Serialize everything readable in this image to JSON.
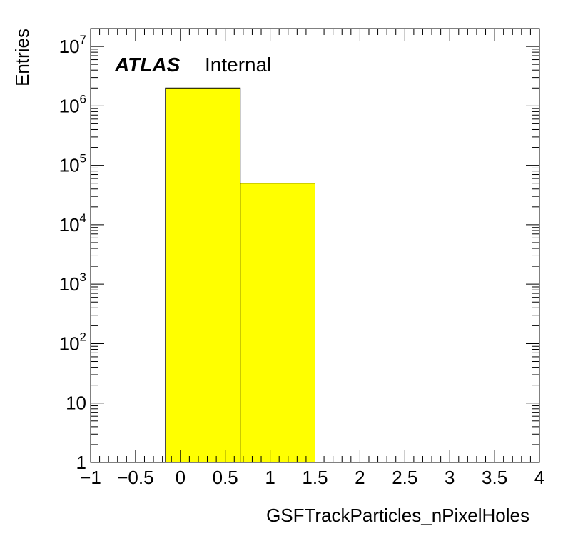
{
  "chart_data": {
    "type": "bar",
    "title": "",
    "xlabel": "GSFTrackParticles_nPixelHoles",
    "ylabel": "Entries",
    "annotation": {
      "experiment": "ATLAS",
      "status": "Internal"
    },
    "xlim": [
      -1,
      4
    ],
    "ylim": [
      1,
      20000000
    ],
    "y_scale": "log",
    "grid": false,
    "legend": "none",
    "fill_color": "#ffff00",
    "bins": [
      {
        "x_low": -0.167,
        "x_high": 0.667,
        "value": 2000000
      },
      {
        "x_low": 0.667,
        "x_high": 1.5,
        "value": 50000
      }
    ],
    "x_ticks": [
      {
        "value": -1,
        "label": "−1"
      },
      {
        "value": -0.5,
        "label": "−0.5"
      },
      {
        "value": 0,
        "label": "0"
      },
      {
        "value": 0.5,
        "label": "0.5"
      },
      {
        "value": 1,
        "label": "1"
      },
      {
        "value": 1.5,
        "label": "1.5"
      },
      {
        "value": 2,
        "label": "2"
      },
      {
        "value": 2.5,
        "label": "2.5"
      },
      {
        "value": 3,
        "label": "3"
      },
      {
        "value": 3.5,
        "label": "3.5"
      },
      {
        "value": 4,
        "label": "4"
      }
    ],
    "y_ticks": [
      {
        "value": 1,
        "base": "1",
        "exp": ""
      },
      {
        "value": 10,
        "base": "10",
        "exp": ""
      },
      {
        "value": 100,
        "base": "10",
        "exp": "2"
      },
      {
        "value": 1000,
        "base": "10",
        "exp": "3"
      },
      {
        "value": 10000,
        "base": "10",
        "exp": "4"
      },
      {
        "value": 100000,
        "base": "10",
        "exp": "5"
      },
      {
        "value": 1000000,
        "base": "10",
        "exp": "6"
      },
      {
        "value": 10000000,
        "base": "10",
        "exp": "7"
      }
    ]
  }
}
